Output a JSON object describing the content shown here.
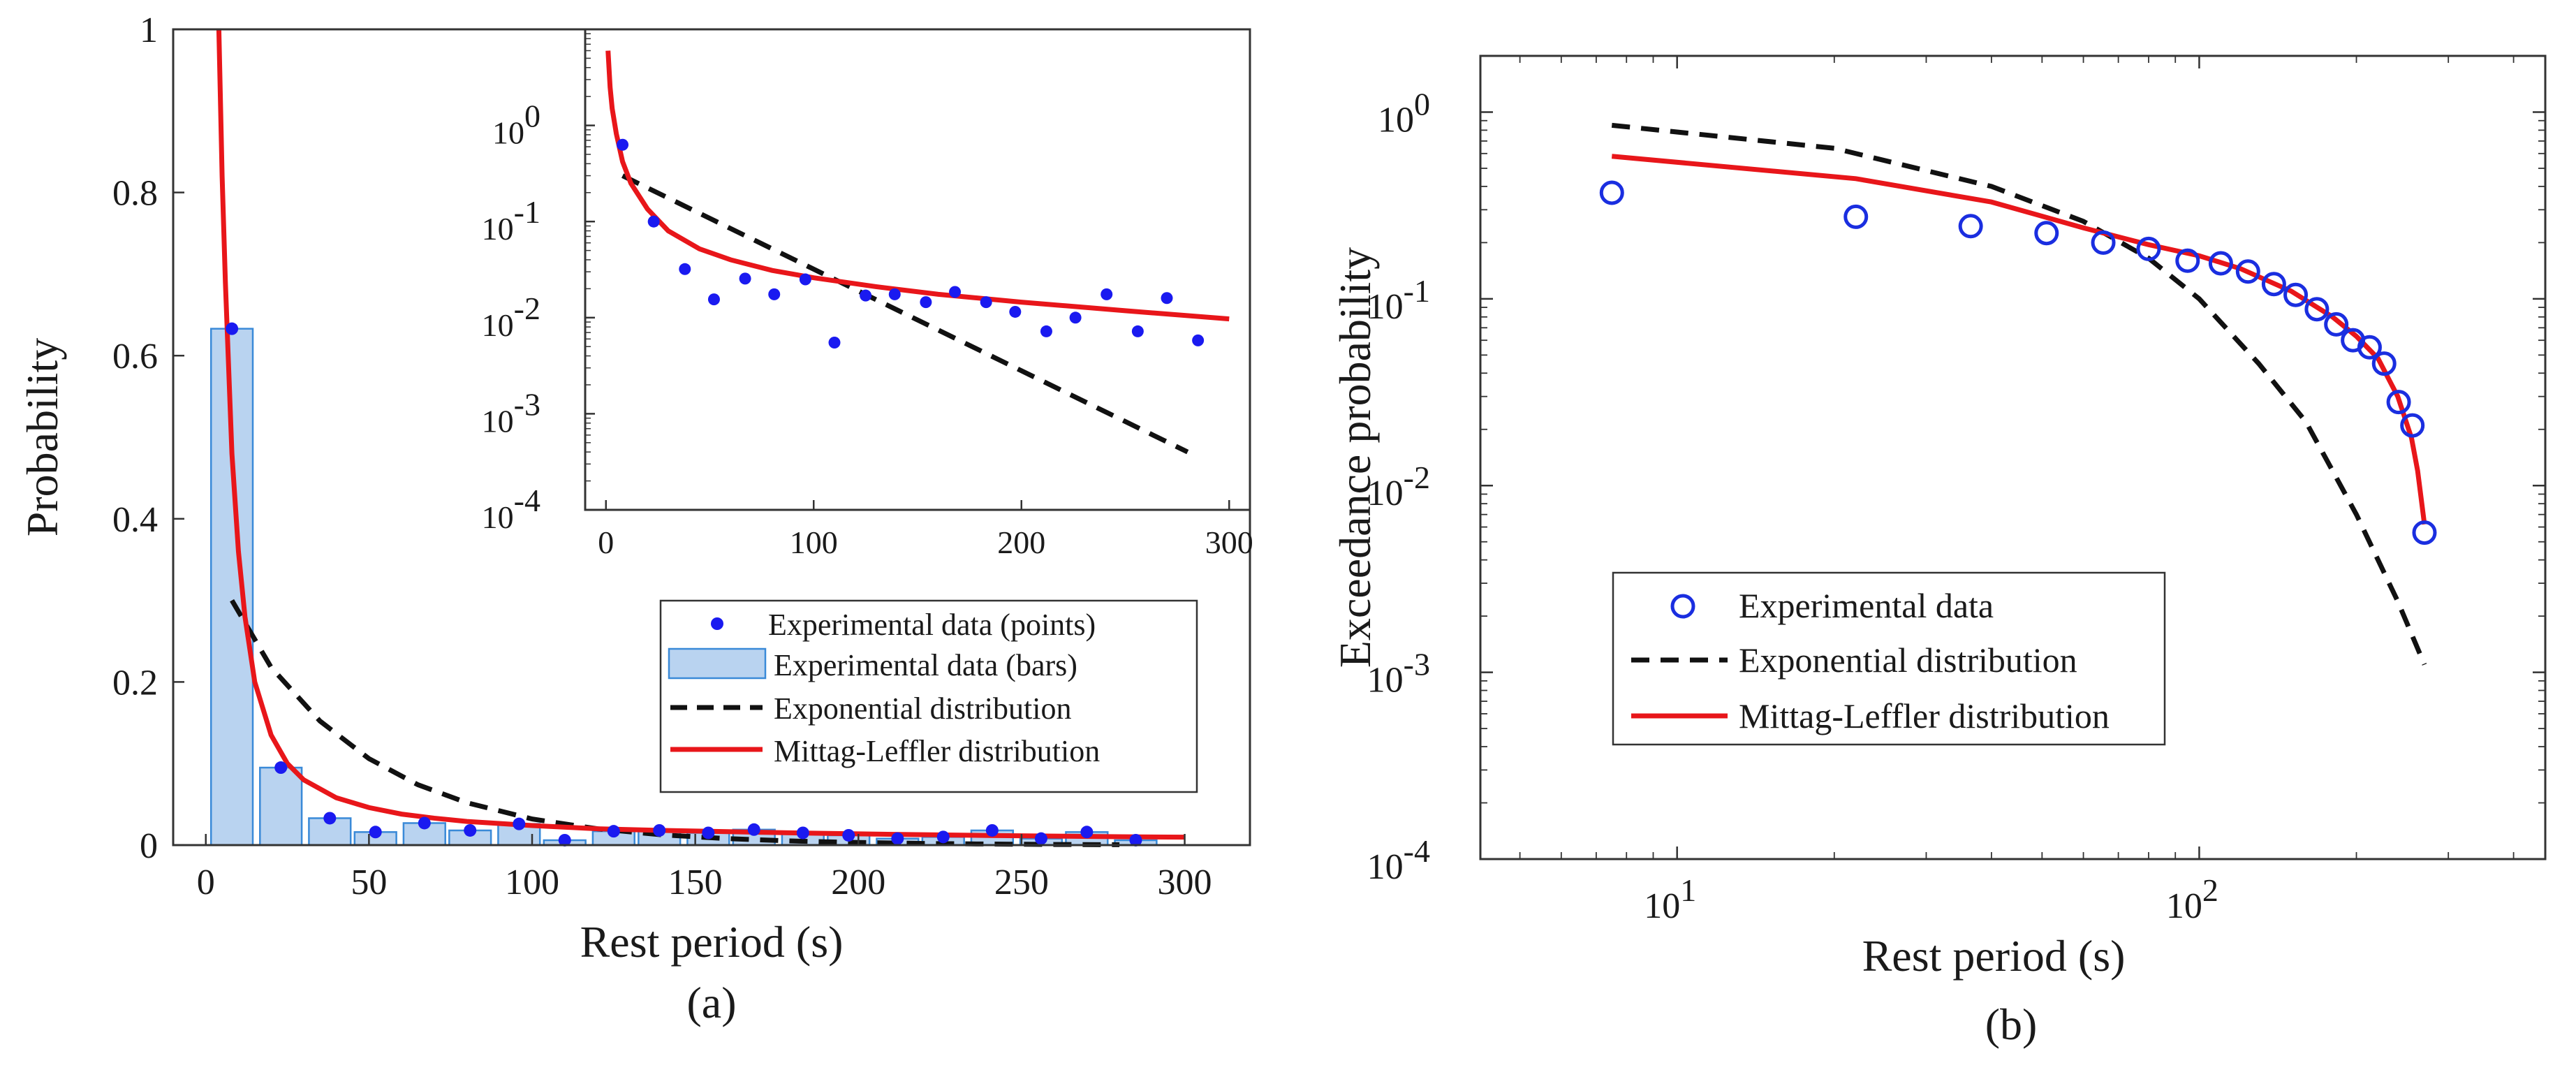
{
  "colors": {
    "points": "#1a1af0",
    "bars_fill": "#b9d3f0",
    "bars_edge": "#3a8ad8",
    "exponential": "#111111",
    "mittag_leffler": "#e8161a",
    "circles": "#1a2ee0",
    "axes": "#333333"
  },
  "chart_data": [
    {
      "id": "a",
      "type": "bar",
      "panel_label": "(a)",
      "xlabel": "Rest period (s)",
      "ylabel": "Probability",
      "xlim": [
        -10,
        320
      ],
      "ylim": [
        0,
        1
      ],
      "xticks": [
        0,
        50,
        100,
        150,
        200,
        250,
        300
      ],
      "xtick_labels": [
        "0",
        "50",
        "100",
        "150",
        "200",
        "250",
        "300"
      ],
      "yticks": [
        0,
        0.2,
        0.4,
        0.6,
        0.8,
        1
      ],
      "ytick_labels": [
        "0",
        "0.2",
        "0.4",
        "0.6",
        "0.8",
        "1"
      ],
      "bin_width": 14,
      "series": [
        {
          "name": "Experimental data (points)",
          "kind": "points",
          "x": [
            8,
            23,
            38,
            52,
            67,
            81,
            96,
            110,
            125,
            139,
            154,
            168,
            183,
            197,
            212,
            226,
            241,
            256,
            270,
            285
          ],
          "values": [
            0.633,
            0.095,
            0.033,
            0.016,
            0.027,
            0.018,
            0.026,
            0.006,
            0.017,
            0.018,
            0.015,
            0.019,
            0.015,
            0.012,
            0.008,
            0.01,
            0.018,
            0.008,
            0.016,
            0.006
          ]
        },
        {
          "name": "Experimental data (bars)",
          "kind": "bars",
          "x": [
            8,
            23,
            38,
            52,
            67,
            81,
            96,
            110,
            125,
            139,
            154,
            168,
            183,
            197,
            212,
            226,
            241,
            256,
            270,
            285
          ],
          "values": [
            0.633,
            0.095,
            0.033,
            0.016,
            0.027,
            0.018,
            0.026,
            0.006,
            0.017,
            0.018,
            0.015,
            0.019,
            0.015,
            0.012,
            0.008,
            0.01,
            0.018,
            0.008,
            0.016,
            0.006
          ]
        },
        {
          "name": "Exponential distribution",
          "kind": "line-dashed",
          "x": [
            8,
            20,
            35,
            50,
            65,
            80,
            100,
            120,
            140,
            160,
            180,
            200,
            220,
            240,
            260,
            280
          ],
          "values": [
            0.3,
            0.218,
            0.152,
            0.106,
            0.074,
            0.052,
            0.032,
            0.02,
            0.0125,
            0.0079,
            0.005,
            0.0032,
            0.002,
            0.0013,
            0.0008,
            0.0005
          ]
        },
        {
          "name": "Mittag-Leffler distribution",
          "kind": "line",
          "x": [
            4,
            5,
            6,
            8,
            10,
            12,
            15,
            20,
            25,
            30,
            40,
            50,
            60,
            70,
            80,
            100,
            120,
            140,
            160,
            180,
            200,
            220,
            240,
            260,
            280,
            300
          ],
          "values": [
            1.0,
            0.82,
            0.69,
            0.48,
            0.36,
            0.28,
            0.2,
            0.135,
            0.1,
            0.08,
            0.058,
            0.046,
            0.038,
            0.033,
            0.029,
            0.024,
            0.02,
            0.018,
            0.0165,
            0.015,
            0.0138,
            0.0127,
            0.0118,
            0.011,
            0.0103,
            0.0097
          ]
        }
      ],
      "legend": {
        "placement": "lower-right",
        "entries": [
          "Experimental data (points)",
          "Experimental data (bars)",
          "Exponential distribution",
          "Mittag-Leffler distribution"
        ]
      },
      "inset": {
        "type": "scatter",
        "yscale": "log",
        "xlim": [
          -10,
          310
        ],
        "ylim": [
          0.0001,
          10
        ],
        "xticks": [
          0,
          100,
          200,
          300
        ],
        "xtick_labels": [
          "0",
          "100",
          "200",
          "300"
        ],
        "yticks": [
          0.0001,
          0.001,
          0.01,
          0.1,
          1
        ],
        "ytick_bases": [
          "10",
          "10",
          "10",
          "10",
          "10"
        ],
        "ytick_exponents": [
          "-4",
          "-3",
          "-2",
          "-1",
          "0"
        ],
        "series": [
          {
            "name": "Experimental data (points)",
            "x": [
              8,
              23,
              38,
              52,
              67,
              81,
              96,
              110,
              125,
              139,
              154,
              168,
              183,
              197,
              212,
              226,
              241,
              256,
              270,
              285
            ],
            "values": [
              0.63,
              0.1,
              0.032,
              0.0155,
              0.0255,
              0.0175,
              0.025,
              0.0055,
              0.017,
              0.0175,
              0.0145,
              0.0185,
              0.0145,
              0.0115,
              0.0072,
              0.01,
              0.0175,
              0.0072,
              0.016,
              0.0058
            ]
          },
          {
            "name": "Exponential distribution",
            "x": [
              8,
              280
            ],
            "values": [
              0.3,
              0.0004
            ]
          },
          {
            "name": "Mittag-Leffler distribution",
            "x": [
              1,
              2,
              3,
              5,
              8,
              12,
              20,
              30,
              45,
              60,
              80,
              100,
              130,
              160,
              200,
              250,
              300
            ],
            "values": [
              6.0,
              2.5,
              1.5,
              0.82,
              0.42,
              0.25,
              0.135,
              0.08,
              0.052,
              0.04,
              0.031,
              0.026,
              0.021,
              0.0175,
              0.0145,
              0.0118,
              0.0097
            ]
          }
        ]
      }
    },
    {
      "id": "b",
      "type": "scatter",
      "panel_label": "(b)",
      "xlabel": "Rest period (s)",
      "ylabel": "Exceedance probability",
      "xscale": "log",
      "yscale": "log",
      "xlim": [
        4.2,
        460
      ],
      "ylim": [
        0.0001,
        2
      ],
      "xticks": [
        10,
        100
      ],
      "xtick_bases": [
        "10",
        "10"
      ],
      "xtick_exponents": [
        "1",
        "2"
      ],
      "yticks": [
        0.0001,
        0.001,
        0.01,
        0.1,
        1
      ],
      "ytick_bases": [
        "10",
        "10",
        "10",
        "10",
        "10"
      ],
      "ytick_exponents": [
        "-4",
        "-3",
        "-2",
        "-1",
        "0"
      ],
      "series": [
        {
          "name": "Experimental data",
          "kind": "circles",
          "x": [
            7.5,
            22,
            36.5,
            51,
            65.5,
            80,
            95,
            110,
            124,
            139,
            153,
            168,
            183,
            197,
            212,
            226,
            241,
            256,
            270
          ],
          "values": [
            0.37,
            0.275,
            0.245,
            0.225,
            0.2,
            0.185,
            0.16,
            0.155,
            0.14,
            0.12,
            0.105,
            0.088,
            0.073,
            0.06,
            0.055,
            0.045,
            0.028,
            0.021,
            0.0056
          ]
        },
        {
          "name": "Exponential distribution",
          "kind": "line-dashed",
          "x": [
            7.5,
            20,
            40,
            60,
            80,
            100,
            130,
            160,
            200,
            240,
            270
          ],
          "values": [
            0.85,
            0.64,
            0.4,
            0.26,
            0.165,
            0.1,
            0.045,
            0.022,
            0.007,
            0.0024,
            0.0011
          ]
        },
        {
          "name": "Mittag-Leffler distribution",
          "kind": "line",
          "x": [
            7.5,
            22,
            40,
            60,
            80,
            100,
            120,
            150,
            180,
            200,
            220,
            240,
            255,
            262,
            270
          ],
          "values": [
            0.58,
            0.44,
            0.33,
            0.24,
            0.195,
            0.17,
            0.145,
            0.11,
            0.08,
            0.063,
            0.048,
            0.03,
            0.018,
            0.012,
            0.0062
          ]
        }
      ],
      "legend": {
        "placement": "center-left",
        "entries": [
          "Experimental data",
          "Exponential distribution",
          "Mittag-Leffler distribution"
        ]
      }
    }
  ]
}
